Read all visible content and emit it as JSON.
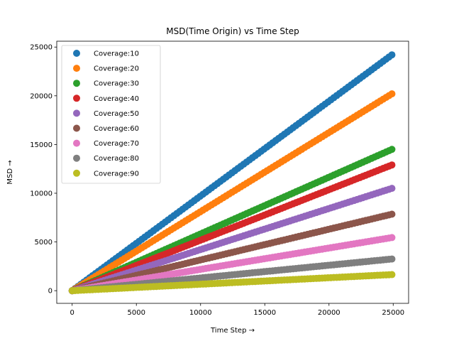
{
  "chart_data": {
    "type": "scatter",
    "title": "MSD(Time Origin) vs Time Step",
    "xlabel": "Time Step →",
    "ylabel": "MSD →",
    "xlim": [
      -1200,
      26200
    ],
    "ylim": [
      -1300,
      25600
    ],
    "xticks": [
      0,
      5000,
      10000,
      15000,
      20000,
      25000
    ],
    "yticks": [
      0,
      5000,
      10000,
      15000,
      20000,
      25000
    ],
    "grid": false,
    "legend_position": "top-left",
    "x_range": [
      0,
      24900
    ],
    "series": [
      {
        "name": "Coverage:10",
        "color": "#1f77b4",
        "x": [
          0,
          24900
        ],
        "y": [
          0,
          24200
        ]
      },
      {
        "name": "Coverage:20",
        "color": "#ff7f0e",
        "x": [
          0,
          24900
        ],
        "y": [
          0,
          20200
        ]
      },
      {
        "name": "Coverage:30",
        "color": "#2ca02c",
        "x": [
          0,
          24900
        ],
        "y": [
          0,
          14500
        ]
      },
      {
        "name": "Coverage:40",
        "color": "#d62728",
        "x": [
          0,
          24900
        ],
        "y": [
          0,
          12900
        ]
      },
      {
        "name": "Coverage:50",
        "color": "#9467bd",
        "x": [
          0,
          24900
        ],
        "y": [
          0,
          10500
        ]
      },
      {
        "name": "Coverage:60",
        "color": "#8c564b",
        "x": [
          0,
          24900
        ],
        "y": [
          0,
          7850
        ]
      },
      {
        "name": "Coverage:70",
        "color": "#e377c2",
        "x": [
          0,
          24900
        ],
        "y": [
          0,
          5450
        ]
      },
      {
        "name": "Coverage:80",
        "color": "#7f7f7f",
        "x": [
          0,
          24900
        ],
        "y": [
          0,
          3250
        ]
      },
      {
        "name": "Coverage:90",
        "color": "#bcbd22",
        "x": [
          0,
          24900
        ],
        "y": [
          0,
          1650
        ]
      }
    ]
  }
}
